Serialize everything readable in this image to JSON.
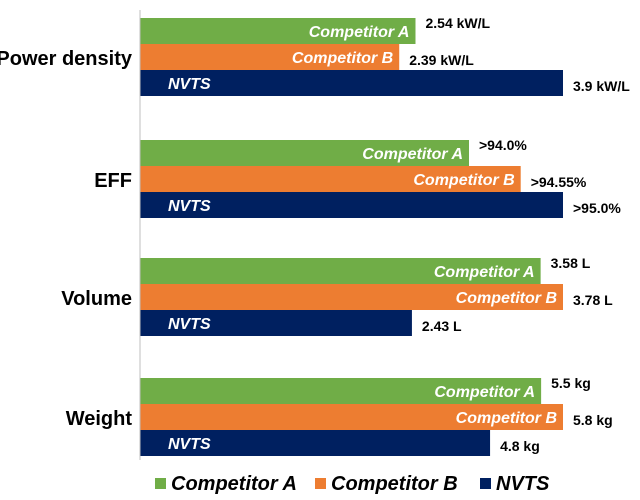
{
  "chart_data": {
    "type": "bar",
    "orientation": "horizontal",
    "groups": [
      {
        "category": "Power density",
        "bars": [
          {
            "series": "Competitor A",
            "label": "Competitor A",
            "value": 2.54,
            "value_label": "2.54 kW/L"
          },
          {
            "series": "Competitor B",
            "label": "Competitor B",
            "value": 2.39,
            "value_label": "2.39 kW/L"
          },
          {
            "series": "NVTS",
            "label": "NVTS",
            "value": 3.9,
            "value_label": "3.9 kW/L"
          }
        ]
      },
      {
        "category": "EFF",
        "bars": [
          {
            "series": "Competitor A",
            "label": "Competitor A",
            "value": 94.0,
            "value_label": ">94.0%"
          },
          {
            "series": "Competitor B",
            "label": "Competitor B",
            "value": 94.55,
            "value_label": ">94.55%"
          },
          {
            "series": "NVTS",
            "label": "NVTS",
            "value": 95.0,
            "value_label": ">95.0%"
          }
        ]
      },
      {
        "category": "Volume",
        "bars": [
          {
            "series": "Competitor A",
            "label": "Competitor A",
            "value": 3.58,
            "value_label": "3.58 L"
          },
          {
            "series": "Competitor B",
            "label": "Competitor B",
            "value": 3.78,
            "value_label": "3.78 L"
          },
          {
            "series": "NVTS",
            "label": "NVTS",
            "value": 2.43,
            "value_label": "2.43 L"
          }
        ]
      },
      {
        "category": "Weight",
        "bars": [
          {
            "series": "Competitor A",
            "label": "Competitor A",
            "value": 5.5,
            "value_label": "5.5 kg"
          },
          {
            "series": "Competitor B",
            "label": "Competitor B",
            "value": 5.8,
            "value_label": "5.8 kg"
          },
          {
            "series": "NVTS",
            "label": "NVTS",
            "value": 4.8,
            "value_label": "4.8 kg"
          }
        ]
      }
    ],
    "series": [
      {
        "name": "Competitor A",
        "color": "#70ad47"
      },
      {
        "name": "Competitor B",
        "color": "#ed7d31"
      },
      {
        "name": "NVTS",
        "color": "#002060"
      }
    ],
    "legend_placement": "bottom",
    "grid": false
  }
}
